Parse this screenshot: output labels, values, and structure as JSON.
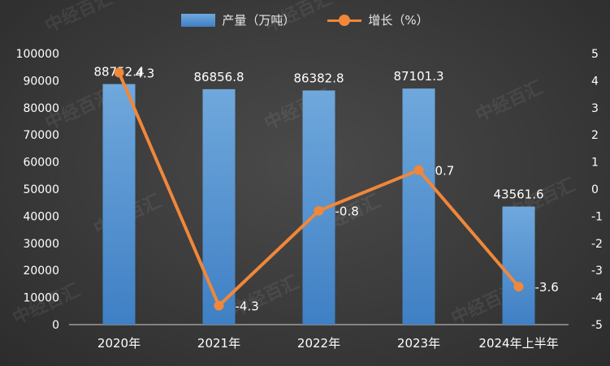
{
  "chart_data": {
    "type": "bar",
    "categories": [
      "2020年",
      "2021年",
      "2022年",
      "2023年",
      "2024年上半年"
    ],
    "series": [
      {
        "name": "产量（万吨）",
        "type": "bar",
        "axis": "left",
        "values": [
          88752.4,
          86856.8,
          86382.8,
          87101.3,
          43561.6
        ],
        "color": "#4e8fd4"
      },
      {
        "name": "增长（%）",
        "type": "line",
        "axis": "right",
        "values": [
          4.3,
          -4.3,
          -0.8,
          0.7,
          -3.6
        ],
        "color": "#f0873a"
      }
    ],
    "ylim_left": [
      0,
      100000
    ],
    "yticks_left": [
      0,
      10000,
      20000,
      30000,
      40000,
      50000,
      60000,
      70000,
      80000,
      90000,
      100000
    ],
    "ylim_right": [
      -5,
      5
    ],
    "yticks_right": [
      -5,
      -4,
      -3,
      -2,
      -1,
      0,
      1,
      2,
      3,
      4,
      5
    ],
    "grid": false,
    "legend_position": "top-center",
    "bar_labels": [
      "88752.4",
      "86856.8",
      "86382.8",
      "87101.3",
      "43561.6"
    ],
    "line_labels": [
      "4.3",
      "-4.3",
      "-0.8",
      "0.7",
      "-3.6"
    ]
  },
  "watermark": {
    "text": "中经百汇"
  }
}
